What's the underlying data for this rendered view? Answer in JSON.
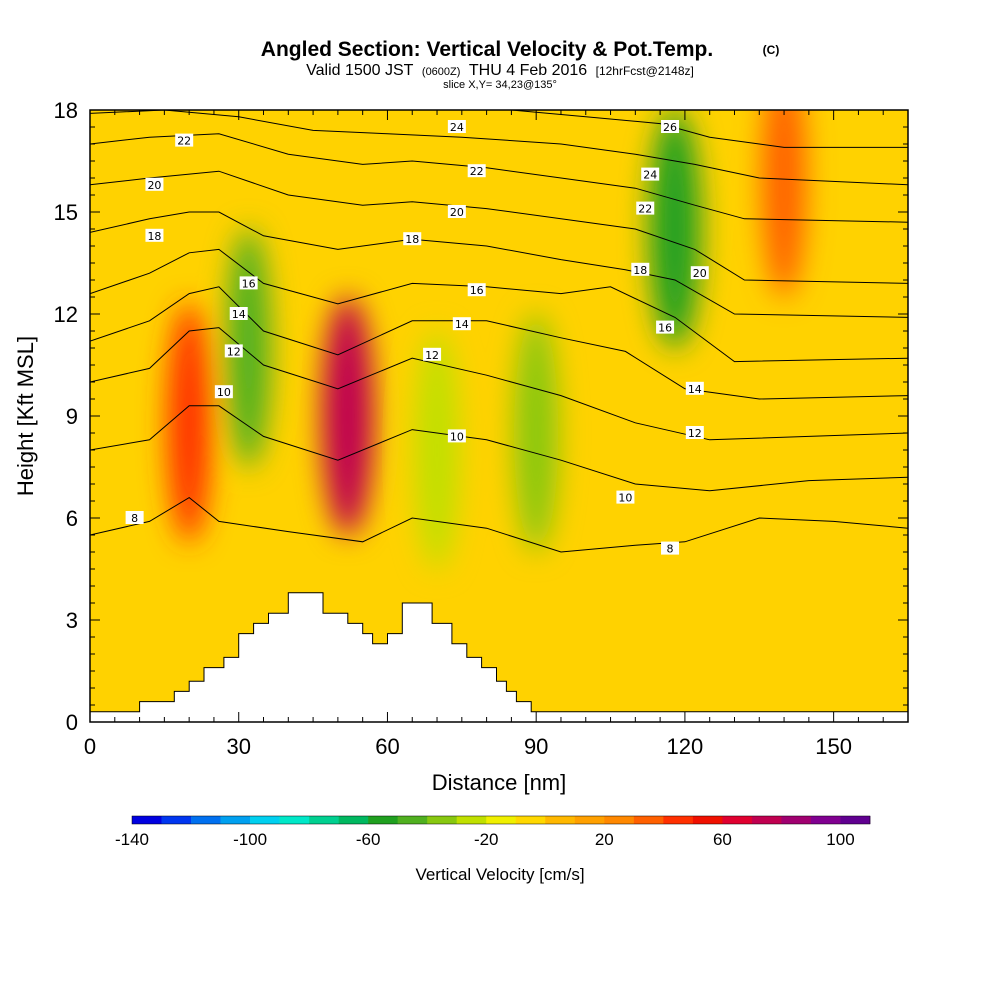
{
  "chart_data": {
    "type": "heatmap",
    "title": "Angled Section: Vertical Velocity & Pot.Temp.",
    "title_units": "(C)",
    "subtitle_main": "Valid 1500 JST",
    "subtitle_zulu": "(0600Z)",
    "subtitle_date": "THU 4 Feb 2016",
    "subtitle_fcst": "[12hrFcst@2148z]",
    "slice": "slice X,Y= 34,23@135°",
    "xlabel": "Distance [nm]",
    "ylabel": "Height [Kft MSL]",
    "xlim": [
      0,
      165
    ],
    "ylim": [
      0,
      18
    ],
    "x_ticks": [
      "0",
      "30",
      "60",
      "90",
      "120",
      "150"
    ],
    "y_ticks": [
      "0",
      "3",
      "6",
      "9",
      "12",
      "15",
      "18"
    ],
    "colorbar": {
      "title": "Vertical Velocity [cm/s]",
      "range": [
        -140,
        110
      ],
      "labels": [
        "-140",
        "-100",
        "-60",
        "-20",
        "20",
        "60",
        "100"
      ],
      "colors": [
        "#0000e0",
        "#0036f0",
        "#0070f0",
        "#00a0f0",
        "#00d0f0",
        "#00e8c8",
        "#00d090",
        "#00b860",
        "#20a020",
        "#50b020",
        "#88c810",
        "#c0e000",
        "#f0f000",
        "#ffd800",
        "#ffb800",
        "#ffa000",
        "#ff8800",
        "#ff6000",
        "#ff3000",
        "#f01000",
        "#e00030",
        "#c00050",
        "#a00070",
        "#800090",
        "#600090"
      ]
    },
    "velocity_features": [
      {
        "x": 20,
        "y": 8.8,
        "velocity": 45
      },
      {
        "x": 32,
        "y": 11,
        "velocity": -45
      },
      {
        "x": 52,
        "y": 9,
        "velocity": 70
      },
      {
        "x": 70,
        "y": 8,
        "velocity": -30
      },
      {
        "x": 90,
        "y": 8.5,
        "velocity": -40
      },
      {
        "x": 118,
        "y": 14.5,
        "velocity": -60
      },
      {
        "x": 140,
        "y": 16,
        "velocity": 30
      }
    ],
    "isentropes": [
      {
        "value": "8",
        "points": [
          [
            0,
            5.5
          ],
          [
            12,
            5.9
          ],
          [
            20,
            6.6
          ],
          [
            26,
            5.9
          ],
          [
            40,
            5.6
          ],
          [
            55,
            5.3
          ],
          [
            65,
            6.0
          ],
          [
            80,
            5.7
          ],
          [
            95,
            5.0
          ],
          [
            110,
            5.2
          ],
          [
            120,
            5.3
          ],
          [
            135,
            6.0
          ],
          [
            150,
            5.9
          ],
          [
            165,
            5.7
          ]
        ],
        "labels": [
          [
            9,
            6.0
          ],
          [
            117,
            5.1
          ]
        ]
      },
      {
        "value": "10",
        "points": [
          [
            0,
            8.0
          ],
          [
            12,
            8.3
          ],
          [
            20,
            9.3
          ],
          [
            26,
            9.3
          ],
          [
            35,
            8.4
          ],
          [
            50,
            7.7
          ],
          [
            65,
            8.6
          ],
          [
            80,
            8.3
          ],
          [
            95,
            7.7
          ],
          [
            110,
            7.0
          ],
          [
            125,
            6.8
          ],
          [
            145,
            7.1
          ],
          [
            165,
            7.2
          ]
        ],
        "labels": [
          [
            27,
            9.7
          ],
          [
            74,
            8.4
          ],
          [
            108,
            6.6
          ]
        ]
      },
      {
        "value": "12",
        "points": [
          [
            0,
            10.0
          ],
          [
            12,
            10.4
          ],
          [
            20,
            11.5
          ],
          [
            26,
            11.6
          ],
          [
            35,
            10.5
          ],
          [
            50,
            9.8
          ],
          [
            65,
            10.7
          ],
          [
            80,
            10.2
          ],
          [
            95,
            9.6
          ],
          [
            110,
            8.8
          ],
          [
            125,
            8.3
          ],
          [
            145,
            8.4
          ],
          [
            165,
            8.5
          ]
        ],
        "labels": [
          [
            29,
            10.9
          ],
          [
            69,
            10.8
          ],
          [
            122,
            8.5
          ]
        ]
      },
      {
        "value": "14",
        "points": [
          [
            0,
            11.2
          ],
          [
            12,
            11.8
          ],
          [
            20,
            12.6
          ],
          [
            26,
            12.8
          ],
          [
            35,
            11.5
          ],
          [
            50,
            10.8
          ],
          [
            65,
            11.8
          ],
          [
            80,
            11.8
          ],
          [
            95,
            11.3
          ],
          [
            108,
            10.9
          ],
          [
            120,
            9.8
          ],
          [
            135,
            9.5
          ],
          [
            165,
            9.6
          ]
        ],
        "labels": [
          [
            30,
            12.0
          ],
          [
            75,
            11.7
          ],
          [
            122,
            9.8
          ]
        ]
      },
      {
        "value": "16",
        "points": [
          [
            0,
            12.6
          ],
          [
            12,
            13.2
          ],
          [
            20,
            13.8
          ],
          [
            26,
            13.9
          ],
          [
            35,
            12.9
          ],
          [
            50,
            12.3
          ],
          [
            65,
            12.9
          ],
          [
            80,
            12.8
          ],
          [
            95,
            12.6
          ],
          [
            105,
            12.8
          ],
          [
            118,
            11.9
          ],
          [
            130,
            10.6
          ],
          [
            165,
            10.7
          ]
        ],
        "labels": [
          [
            32,
            12.9
          ],
          [
            78,
            12.7
          ],
          [
            116,
            11.6
          ]
        ]
      },
      {
        "value": "18",
        "points": [
          [
            0,
            14.4
          ],
          [
            12,
            14.8
          ],
          [
            20,
            15.0
          ],
          [
            26,
            15.0
          ],
          [
            35,
            14.3
          ],
          [
            50,
            13.9
          ],
          [
            65,
            14.2
          ],
          [
            80,
            14.0
          ],
          [
            95,
            13.6
          ],
          [
            108,
            13.3
          ],
          [
            118,
            13.0
          ],
          [
            130,
            12.0
          ],
          [
            165,
            11.9
          ]
        ],
        "labels": [
          [
            13,
            14.3
          ],
          [
            65,
            14.2
          ],
          [
            111,
            13.3
          ]
        ]
      },
      {
        "value": "20",
        "points": [
          [
            0,
            15.8
          ],
          [
            12,
            16.0
          ],
          [
            26,
            16.2
          ],
          [
            40,
            15.5
          ],
          [
            55,
            15.2
          ],
          [
            65,
            15.3
          ],
          [
            80,
            15.1
          ],
          [
            95,
            14.8
          ],
          [
            110,
            14.5
          ],
          [
            122,
            13.9
          ],
          [
            132,
            13.0
          ],
          [
            165,
            12.9
          ]
        ],
        "labels": [
          [
            13,
            15.8
          ],
          [
            74,
            15.0
          ],
          [
            123,
            13.2
          ]
        ]
      },
      {
        "value": "22",
        "points": [
          [
            0,
            17.0
          ],
          [
            12,
            17.2
          ],
          [
            26,
            17.3
          ],
          [
            40,
            16.7
          ],
          [
            55,
            16.4
          ],
          [
            65,
            16.5
          ],
          [
            80,
            16.3
          ],
          [
            95,
            16.0
          ],
          [
            110,
            15.7
          ],
          [
            122,
            15.2
          ],
          [
            132,
            14.8
          ],
          [
            165,
            14.7
          ]
        ],
        "labels": [
          [
            19,
            17.1
          ],
          [
            78,
            16.2
          ],
          [
            112,
            15.1
          ]
        ]
      },
      {
        "value": "24",
        "points": [
          [
            0,
            17.9
          ],
          [
            15,
            18.0
          ],
          [
            30,
            17.8
          ],
          [
            45,
            17.4
          ],
          [
            60,
            17.3
          ],
          [
            75,
            17.2
          ],
          [
            95,
            17.0
          ],
          [
            110,
            16.7
          ],
          [
            122,
            16.4
          ],
          [
            135,
            16.0
          ],
          [
            165,
            15.8
          ]
        ],
        "labels": [
          [
            74,
            17.5
          ],
          [
            113,
            16.1
          ]
        ]
      },
      {
        "value": "26",
        "points": [
          [
            85,
            18.0
          ],
          [
            100,
            17.8
          ],
          [
            115,
            17.6
          ],
          [
            125,
            17.2
          ],
          [
            140,
            16.9
          ],
          [
            165,
            16.9
          ]
        ],
        "labels": [
          [
            117,
            17.5
          ]
        ]
      }
    ],
    "terrain": [
      [
        0,
        0.3
      ],
      [
        10,
        0.3
      ],
      [
        10,
        0.6
      ],
      [
        17,
        0.6
      ],
      [
        17,
        0.9
      ],
      [
        20,
        0.9
      ],
      [
        20,
        1.2
      ],
      [
        23,
        1.2
      ],
      [
        23,
        1.6
      ],
      [
        27,
        1.6
      ],
      [
        27,
        1.9
      ],
      [
        30,
        1.9
      ],
      [
        30,
        2.6
      ],
      [
        33,
        2.6
      ],
      [
        33,
        2.9
      ],
      [
        36,
        2.9
      ],
      [
        36,
        3.2
      ],
      [
        40,
        3.2
      ],
      [
        40,
        3.8
      ],
      [
        47,
        3.8
      ],
      [
        47,
        3.2
      ],
      [
        52,
        3.2
      ],
      [
        52,
        2.9
      ],
      [
        55,
        2.9
      ],
      [
        55,
        2.6
      ],
      [
        57,
        2.6
      ],
      [
        57,
        2.3
      ],
      [
        60,
        2.3
      ],
      [
        60,
        2.6
      ],
      [
        63,
        2.6
      ],
      [
        63,
        3.5
      ],
      [
        69,
        3.5
      ],
      [
        69,
        2.9
      ],
      [
        73,
        2.9
      ],
      [
        73,
        2.3
      ],
      [
        76,
        2.3
      ],
      [
        76,
        1.9
      ],
      [
        79,
        1.9
      ],
      [
        79,
        1.6
      ],
      [
        82,
        1.6
      ],
      [
        82,
        1.2
      ],
      [
        84,
        1.2
      ],
      [
        84,
        0.9
      ],
      [
        86,
        0.9
      ],
      [
        86,
        0.6
      ],
      [
        89,
        0.6
      ],
      [
        89,
        0.3
      ],
      [
        165,
        0.3
      ],
      [
        165,
        0
      ],
      [
        0,
        0
      ]
    ]
  }
}
